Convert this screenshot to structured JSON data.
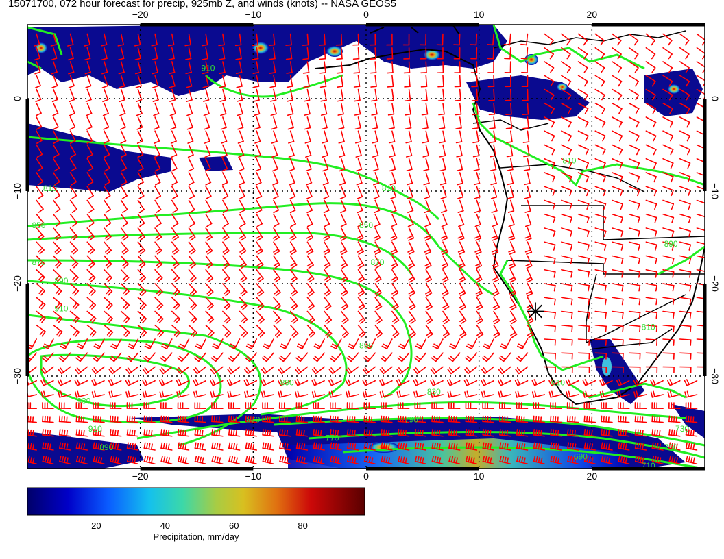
{
  "title": "15071700, 072 hour forecast for precip, 925mb Z, and winds (knots) -- NASA GEOS5",
  "map": {
    "lon_range": [
      -30,
      30
    ],
    "lat_range": [
      -40,
      8
    ],
    "lon_ticks": [
      -20,
      -10,
      0,
      10,
      20
    ],
    "lat_ticks": [
      0,
      -10,
      -20,
      -30
    ],
    "lon_tick_labels": [
      "−20",
      "−10",
      "0",
      "10",
      "20"
    ],
    "lat_tick_labels": [
      "0",
      "−10",
      "−20",
      "−30"
    ],
    "grid": "dotted",
    "marker": {
      "lon": 15,
      "lat": -23,
      "symbol": "asterisk"
    },
    "colors": {
      "contour": "#22ee22",
      "barb": "#ff0000",
      "coast": "#000000"
    }
  },
  "contours": {
    "levels_shown": [
      "810",
      "850",
      "870",
      "890",
      "910",
      "930",
      "830",
      "790",
      "770",
      "750",
      "730",
      "710",
      "690",
      "670"
    ],
    "labels": [
      {
        "text": "870",
        "lon": -29,
        "lat": -18
      },
      {
        "text": "850",
        "lon": -29,
        "lat": -14
      },
      {
        "text": "810",
        "lon": -28,
        "lat": -10
      },
      {
        "text": "890",
        "lon": -27,
        "lat": -20
      },
      {
        "text": "910",
        "lon": -27,
        "lat": -23
      },
      {
        "text": "930",
        "lon": -25,
        "lat": -33
      },
      {
        "text": "910",
        "lon": -24,
        "lat": -36
      },
      {
        "text": "890",
        "lon": -23,
        "lat": -38
      },
      {
        "text": "810",
        "lon": 2,
        "lat": -10
      },
      {
        "text": "850",
        "lon": 0,
        "lat": -14
      },
      {
        "text": "870",
        "lon": 1,
        "lat": -18
      },
      {
        "text": "890",
        "lon": 0,
        "lat": -27
      },
      {
        "text": "890",
        "lon": -7,
        "lat": -31
      },
      {
        "text": "870",
        "lon": -10,
        "lat": -35
      },
      {
        "text": "830",
        "lon": 6,
        "lat": -32
      },
      {
        "text": "790",
        "lon": 4,
        "lat": -35
      },
      {
        "text": "770",
        "lon": -3,
        "lat": -37
      },
      {
        "text": "750",
        "lon": 27,
        "lat": -38
      },
      {
        "text": "730",
        "lon": 28,
        "lat": -36
      },
      {
        "text": "710",
        "lon": 25,
        "lat": -40
      },
      {
        "text": "690",
        "lon": 19,
        "lat": -39
      },
      {
        "text": "610",
        "lon": 17,
        "lat": -31
      },
      {
        "text": "810",
        "lon": 18,
        "lat": -7
      },
      {
        "text": "910",
        "lon": -14,
        "lat": 3
      },
      {
        "text": "890",
        "lon": 27,
        "lat": -16
      },
      {
        "text": "810",
        "lon": 25,
        "lat": -25
      }
    ]
  },
  "colorbar": {
    "range": [
      0,
      98
    ],
    "ticks": [
      20,
      40,
      60,
      80
    ],
    "tick_labels": [
      "20",
      "40",
      "60",
      "80"
    ],
    "label": "Precipitation, mm/day",
    "colors": [
      "#00007a",
      "#0000cc",
      "#1060ff",
      "#18c8e8",
      "#40d8a0",
      "#b8c840",
      "#e0b020",
      "#e06010",
      "#c80000",
      "#600000"
    ]
  }
}
